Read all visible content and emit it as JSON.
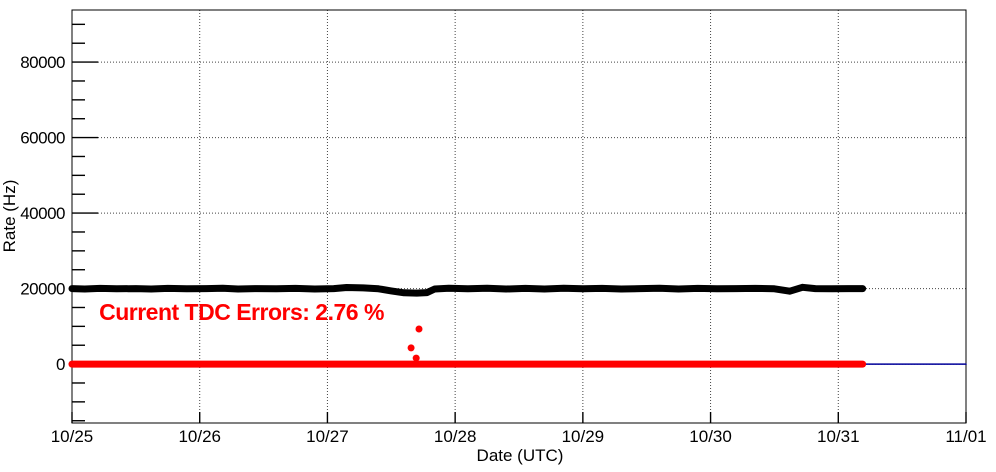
{
  "chart_data": {
    "type": "scatter",
    "title": "",
    "xlabel": "Date (UTC)",
    "ylabel": "Rate (Hz)",
    "x_tick_labels": [
      "10/25",
      "10/26",
      "10/27",
      "10/28",
      "10/29",
      "10/30",
      "10/31",
      "11/01"
    ],
    "x_tick_positions_days": [
      0,
      1,
      2,
      3,
      4,
      5,
      6,
      7
    ],
    "y_tick_labels": [
      "0",
      "20000",
      "40000",
      "60000",
      "80000"
    ],
    "y_ticks": [
      0,
      20000,
      40000,
      60000,
      80000
    ],
    "y_minor_step": 5000,
    "xlim_days": [
      0,
      7
    ],
    "ylim": [
      -15600,
      93800
    ],
    "grid": true,
    "grid_color": "#444444",
    "frame_color": "#000000",
    "legend": "none",
    "series": [
      {
        "name": "zero-reference-line",
        "type": "line",
        "color": "#000099",
        "width": 1.5,
        "points": [
          [
            0,
            0
          ],
          [
            7,
            0
          ]
        ]
      },
      {
        "name": "tdc-error-rate",
        "type": "band",
        "color": "#ff0000",
        "marker_size": 7,
        "points": [
          [
            0,
            0
          ],
          [
            6.19,
            0
          ]
        ],
        "outliers": [
          [
            2.655,
            4300
          ],
          [
            2.695,
            1600
          ],
          [
            2.717,
            9300
          ]
        ]
      },
      {
        "name": "trigger-rate",
        "type": "band",
        "color": "#000000",
        "marker_size": 7,
        "points": [
          [
            0.0,
            20000
          ],
          [
            0.1,
            19900
          ],
          [
            0.22,
            20050
          ],
          [
            0.35,
            19950
          ],
          [
            0.5,
            20000
          ],
          [
            0.62,
            19900
          ],
          [
            0.75,
            20050
          ],
          [
            0.9,
            19950
          ],
          [
            1.05,
            20000
          ],
          [
            1.18,
            20100
          ],
          [
            1.3,
            19900
          ],
          [
            1.45,
            20000
          ],
          [
            1.6,
            19950
          ],
          [
            1.75,
            20050
          ],
          [
            1.9,
            19900
          ],
          [
            2.05,
            20000
          ],
          [
            2.15,
            20300
          ],
          [
            2.28,
            20200
          ],
          [
            2.4,
            19950
          ],
          [
            2.5,
            19400
          ],
          [
            2.6,
            18900
          ],
          [
            2.7,
            18800
          ],
          [
            2.78,
            18950
          ],
          [
            2.84,
            19900
          ],
          [
            2.95,
            20100
          ],
          [
            3.1,
            19950
          ],
          [
            3.25,
            20100
          ],
          [
            3.4,
            19900
          ],
          [
            3.55,
            20050
          ],
          [
            3.7,
            19900
          ],
          [
            3.85,
            20100
          ],
          [
            4.0,
            19950
          ],
          [
            4.15,
            20050
          ],
          [
            4.3,
            19900
          ],
          [
            4.45,
            20000
          ],
          [
            4.6,
            20100
          ],
          [
            4.75,
            19900
          ],
          [
            4.9,
            20050
          ],
          [
            5.05,
            19950
          ],
          [
            5.2,
            20000
          ],
          [
            5.35,
            20050
          ],
          [
            5.5,
            19950
          ],
          [
            5.62,
            19300
          ],
          [
            5.72,
            20350
          ],
          [
            5.82,
            20000
          ],
          [
            5.95,
            19950
          ],
          [
            6.08,
            20000
          ],
          [
            6.19,
            20000
          ]
        ]
      }
    ],
    "annotation": {
      "text": "Current TDC Errors: 2.76 %",
      "color": "#ff0000",
      "x_day": 0.22,
      "y_hz": 13500
    }
  }
}
